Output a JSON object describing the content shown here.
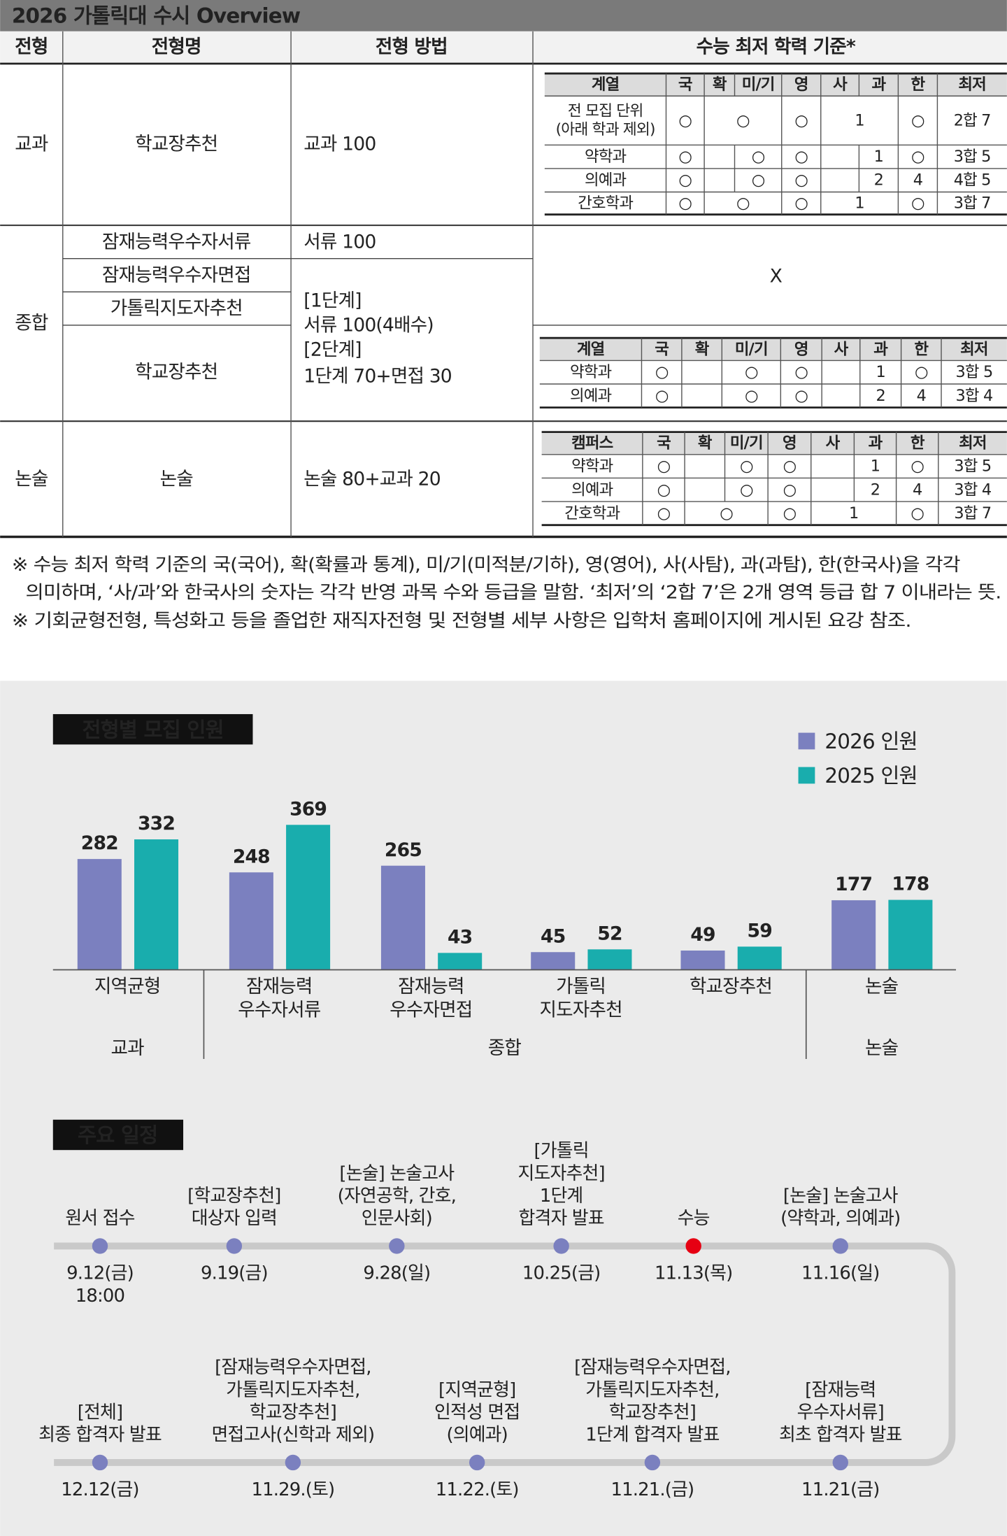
{
  "header": {
    "title": "2026 가톨릭대 수시 Overview"
  },
  "table": {
    "columns": [
      "전형",
      "전형명",
      "전형 방법",
      "수능 최저 학력 기준*"
    ],
    "groups": [
      {
        "type": "교과",
        "entries": [
          {
            "name": "학교장추천",
            "method": [
              "교과 100"
            ]
          }
        ],
        "criteria": {
          "headers": [
            "계열",
            "국",
            "확",
            "미/기",
            "영",
            "사",
            "과",
            "한",
            "최저"
          ],
          "rows": [
            [
              [
                "전 모집 단위",
                "(아래 학과 제외)"
              ],
              "○",
              "○",
              "○",
              "1",
              "○",
              "2합 7"
            ],
            [
              "약학과",
              "○",
              null,
              "○",
              "○",
              null,
              "1",
              "○",
              "3합 5"
            ],
            [
              "의예과",
              "○",
              null,
              "○",
              "○",
              null,
              "2",
              "4",
              "4합 5"
            ],
            [
              "간호학과",
              "○",
              "○",
              "○",
              "1",
              "○",
              "3합 7"
            ]
          ]
        }
      },
      {
        "type": "종합",
        "entries": [
          {
            "name": "잠재능력우수자서류",
            "method": [
              "서류 100"
            ]
          },
          {
            "name": "잠재능력우수자면접"
          },
          {
            "name": "가톨릭지도자추천"
          },
          {
            "name": "학교장추천"
          }
        ],
        "shared_method": [
          "[1단계]",
          "서류 100(4배수)",
          "[2단계]",
          "1단계 70+면접 30"
        ],
        "criteria_none": "X",
        "criteria": {
          "headers": [
            "계열",
            "국",
            "확",
            "미/기",
            "영",
            "사",
            "과",
            "한",
            "최저"
          ],
          "rows": [
            [
              "약학과",
              "○",
              null,
              "○",
              "○",
              null,
              "1",
              "○",
              "3합 5"
            ],
            [
              "의예과",
              "○",
              null,
              "○",
              "○",
              null,
              "2",
              "4",
              "3합 4"
            ]
          ]
        }
      },
      {
        "type": "논술",
        "entries": [
          {
            "name": "논술",
            "method": [
              "논술 80+교과 20"
            ]
          }
        ],
        "criteria": {
          "headers": [
            "캠퍼스",
            "국",
            "확",
            "미/기",
            "영",
            "사",
            "과",
            "한",
            "최저"
          ],
          "rows": [
            [
              "약학과",
              "○",
              null,
              "○",
              "○",
              null,
              "1",
              "○",
              "3합 5"
            ],
            [
              "의예과",
              "○",
              null,
              "○",
              "○",
              null,
              "2",
              "4",
              "3합 4"
            ],
            [
              "간호학과",
              "○",
              "○",
              "○",
              "1",
              "○",
              "3합 7"
            ]
          ]
        }
      }
    ]
  },
  "notes": [
    [
      "※ 수능 최저 학력 기준의 국(국어), 확(확률과 통계), 미/기(미적분/기하), 영(영어), 사(사탐), 과(과탐), 한(한국사)을 각각",
      "의미하며, ‘사/과’와 한국사의 숫자는 각각 반영 과목 수와 등급을 말함. ‘최저’의 ‘2합 7’은 2개 영역 등급 합 7 이내라는 뜻."
    ],
    [
      "※ 기회균형전형, 특성화고 등을 졸업한 재직자전형 및 전형별 세부 사항은 입학처 홈페이지에 게시된 요강 참조."
    ]
  ],
  "chart_data": {
    "type": "bar",
    "title": "전형별 모집 인원",
    "categories": [
      [
        "지역균형"
      ],
      [
        "잠재능력",
        "우수자서류"
      ],
      [
        "잠재능력",
        "우수자면접"
      ],
      [
        "가톨릭",
        "지도자추천"
      ],
      [
        "학교장추천"
      ],
      [
        "논술"
      ]
    ],
    "groups": [
      "교과",
      "종합",
      "논술"
    ],
    "series": [
      {
        "name": "2026 인원",
        "color": "#7b80bf",
        "values": [
          282,
          248,
          265,
          45,
          49,
          177
        ]
      },
      {
        "name": "2025 인원",
        "color": "#19adad",
        "values": [
          332,
          369,
          43,
          52,
          59,
          178
        ]
      }
    ]
  },
  "schedule": {
    "title": "주요 일정",
    "events": [
      {
        "label": [
          "원서 접수"
        ],
        "date": [
          "9.12(금)",
          "18:00"
        ]
      },
      {
        "label": [
          "[학교장추천]",
          "대상자 입력"
        ],
        "date": [
          "9.19(금)"
        ]
      },
      {
        "label": [
          "[논술] 논술고사",
          "(자연공학, 간호,",
          "인문사회)"
        ],
        "date": [
          "9.28(일)"
        ]
      },
      {
        "label": [
          "[가톨릭",
          "지도자추천]",
          "1단계",
          "합격자 발표"
        ],
        "date": [
          "10.25(금)"
        ]
      },
      {
        "label": [
          "수능"
        ],
        "date": [
          "11.13(목)"
        ],
        "color": "#e60012"
      },
      {
        "label": [
          "[논술] 논술고사",
          "(약학과, 의예과)"
        ],
        "date": [
          "11.16(일)"
        ]
      },
      {
        "label": [
          "[잠재능력",
          "우수자서류]",
          "최초 합격자 발표"
        ],
        "date": [
          "11.21(금)"
        ]
      },
      {
        "label": [
          "[잠재능력우수자면접,",
          "가톨릭지도자추천,",
          "학교장추천]",
          "1단계 합격자 발표"
        ],
        "date": [
          "11.21.(금)"
        ]
      },
      {
        "label": [
          "[지역균형]",
          "인적성 면접",
          "(의예과)"
        ],
        "date": [
          "11.22.(토)"
        ]
      },
      {
        "label": [
          "[잠재능력우수자면접,",
          "가톨릭지도자추천,",
          "학교장추천]",
          "면접고사(신학과 제외)"
        ],
        "date": [
          "11.29.(토)"
        ]
      },
      {
        "label": [
          "[전체]",
          "최종 합격자 발표"
        ],
        "date": [
          "12.12(금)"
        ]
      }
    ]
  }
}
